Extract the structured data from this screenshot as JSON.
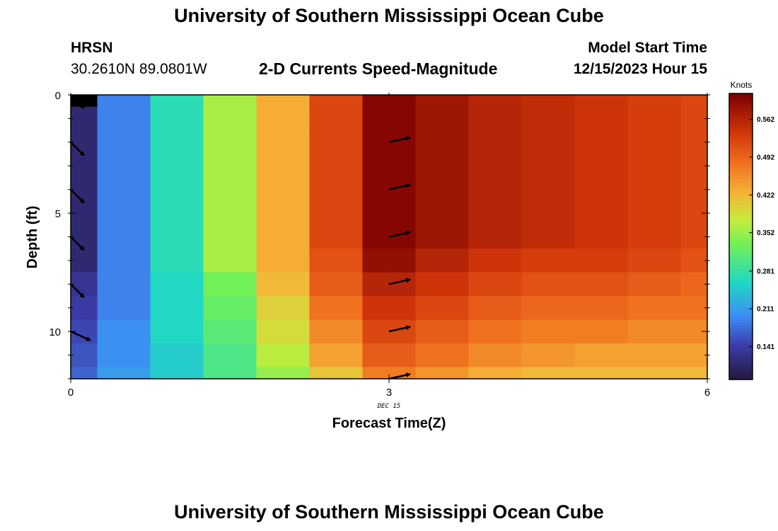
{
  "header": {
    "title": "University of Southern Mississippi Ocean Cube",
    "station": "HRSN",
    "coords": "30.2610N  89.0801W",
    "subtitle": "2-D Currents Speed-Magnitude",
    "model_start_label": "Model Start Time",
    "model_start_value": "12/15/2023 Hour 15"
  },
  "footer": {
    "title": "University of Southern Mississippi Ocean Cube"
  },
  "chart_data": {
    "type": "heatmap",
    "xlabel": "Forecast Time(Z)",
    "ylabel": "Depth (ft)",
    "xlim": [
      0,
      6
    ],
    "ylim": [
      0,
      12
    ],
    "y_inverted": true,
    "x_ticks": [
      0,
      3,
      6
    ],
    "y_ticks": [
      0,
      5,
      10
    ],
    "x_date_label": "DEC 15",
    "colorbar": {
      "title": "Knots",
      "ticks": [
        "0.141",
        "0.211",
        "0.281",
        "0.352",
        "0.422",
        "0.492",
        "0.562"
      ],
      "range": [
        0.08,
        0.61
      ]
    },
    "column_times": [
      0,
      0.5,
      1,
      1.5,
      2,
      2.5,
      3,
      3.5,
      4,
      4.5,
      5,
      5.5,
      6
    ],
    "row_depths": [
      0,
      1,
      2,
      3,
      4,
      5,
      6,
      7,
      8,
      9,
      10,
      11,
      12
    ],
    "speed_knots": [
      [
        null,
        0.19,
        0.27,
        0.36,
        0.43,
        0.52,
        0.6,
        0.58,
        0.56,
        0.55,
        0.54,
        0.53,
        0.52
      ],
      [
        0.11,
        0.19,
        0.27,
        0.36,
        0.43,
        0.52,
        0.6,
        0.58,
        0.56,
        0.55,
        0.54,
        0.53,
        0.52
      ],
      [
        0.11,
        0.19,
        0.27,
        0.36,
        0.43,
        0.52,
        0.6,
        0.58,
        0.56,
        0.55,
        0.54,
        0.53,
        0.52
      ],
      [
        0.11,
        0.19,
        0.27,
        0.36,
        0.43,
        0.52,
        0.6,
        0.58,
        0.56,
        0.55,
        0.54,
        0.53,
        0.52
      ],
      [
        0.11,
        0.19,
        0.27,
        0.36,
        0.43,
        0.52,
        0.6,
        0.58,
        0.56,
        0.55,
        0.54,
        0.53,
        0.52
      ],
      [
        0.11,
        0.19,
        0.27,
        0.36,
        0.43,
        0.52,
        0.6,
        0.58,
        0.56,
        0.55,
        0.54,
        0.53,
        0.52
      ],
      [
        0.11,
        0.19,
        0.27,
        0.36,
        0.43,
        0.52,
        0.6,
        0.58,
        0.56,
        0.55,
        0.54,
        0.53,
        0.52
      ],
      [
        0.11,
        0.19,
        0.27,
        0.36,
        0.43,
        0.51,
        0.59,
        0.56,
        0.54,
        0.53,
        0.53,
        0.52,
        0.51
      ],
      [
        0.13,
        0.19,
        0.26,
        0.33,
        0.42,
        0.5,
        0.56,
        0.54,
        0.52,
        0.51,
        0.51,
        0.5,
        0.49
      ],
      [
        0.14,
        0.19,
        0.26,
        0.32,
        0.4,
        0.48,
        0.54,
        0.52,
        0.5,
        0.49,
        0.49,
        0.48,
        0.48
      ],
      [
        0.15,
        0.2,
        0.26,
        0.31,
        0.39,
        0.46,
        0.52,
        0.5,
        0.48,
        0.47,
        0.47,
        0.46,
        0.46
      ],
      [
        0.16,
        0.2,
        0.25,
        0.3,
        0.37,
        0.44,
        0.5,
        0.48,
        0.46,
        0.45,
        0.44,
        0.44,
        0.44
      ],
      [
        0.17,
        0.21,
        0.25,
        0.3,
        0.35,
        0.41,
        0.47,
        0.45,
        0.43,
        0.42,
        0.42,
        0.42,
        0.42
      ]
    ],
    "vectors": [
      {
        "time": 0,
        "depth": 0,
        "direction": "southeast"
      },
      {
        "time": 0,
        "depth": 2,
        "direction": "southeast"
      },
      {
        "time": 0,
        "depth": 4,
        "direction": "southeast"
      },
      {
        "time": 0,
        "depth": 6,
        "direction": "southeast"
      },
      {
        "time": 0,
        "depth": 8,
        "direction": "southeast"
      },
      {
        "time": 0,
        "depth": 10,
        "direction": "east-southeast"
      },
      {
        "time": 3,
        "depth": 2,
        "direction": "east-northeast"
      },
      {
        "time": 3,
        "depth": 4,
        "direction": "east-northeast"
      },
      {
        "time": 3,
        "depth": 6,
        "direction": "east-northeast"
      },
      {
        "time": 3,
        "depth": 8,
        "direction": "east-northeast"
      },
      {
        "time": 3,
        "depth": 10,
        "direction": "east-northeast"
      },
      {
        "time": 3,
        "depth": 12,
        "direction": "east-northeast"
      }
    ]
  }
}
